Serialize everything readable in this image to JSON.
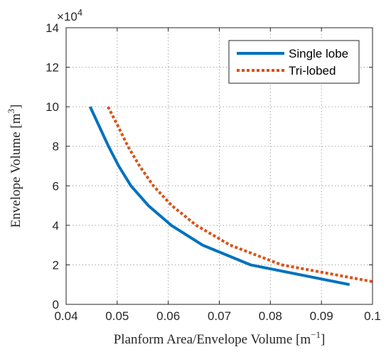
{
  "chart_data": {
    "type": "line",
    "title": "",
    "xlabel": "Planform Area/Envelope Volume [m",
    "xlabel_sup": "−1",
    "xlabel_close": "]",
    "ylabel": "Envelope Volume [m",
    "ylabel_sup": "3",
    "ylabel_close": "]",
    "y_exponent": "×10",
    "y_exponent_power": "4",
    "xlim": [
      0.04,
      0.1
    ],
    "ylim": [
      0,
      140000
    ],
    "x_ticks": [
      0.04,
      0.05,
      0.06,
      0.07,
      0.08,
      0.09,
      0.1
    ],
    "x_tick_labels": [
      "0.04",
      "0.05",
      "0.06",
      "0.07",
      "0.08",
      "0.09",
      "0.1"
    ],
    "y_ticks": [
      0,
      20000,
      40000,
      60000,
      80000,
      100000,
      120000,
      140000
    ],
    "y_tick_labels": [
      "0",
      "2",
      "4",
      "6",
      "8",
      "10",
      "12",
      "14"
    ],
    "grid": true,
    "legend_position": "top-right",
    "series": [
      {
        "name": "Single lobe",
        "color": "#0072BD",
        "style": "solid",
        "x": [
          0.0447,
          0.0465,
          0.0483,
          0.0503,
          0.0527,
          0.0561,
          0.0606,
          0.0667,
          0.0761,
          0.0955
        ],
        "y": [
          100000,
          90000,
          80000,
          70000,
          60000,
          50000,
          40000,
          30000,
          20000,
          10000
        ]
      },
      {
        "name": "Tri-lobed",
        "color": "#D95319",
        "style": "dotted",
        "x": [
          0.0482,
          0.0502,
          0.0521,
          0.0544,
          0.0571,
          0.0607,
          0.0655,
          0.0721,
          0.0822,
          0.1
        ],
        "y": [
          100000,
          90000,
          80000,
          70000,
          60000,
          50000,
          40000,
          30000,
          20000,
          11500
        ]
      }
    ]
  }
}
